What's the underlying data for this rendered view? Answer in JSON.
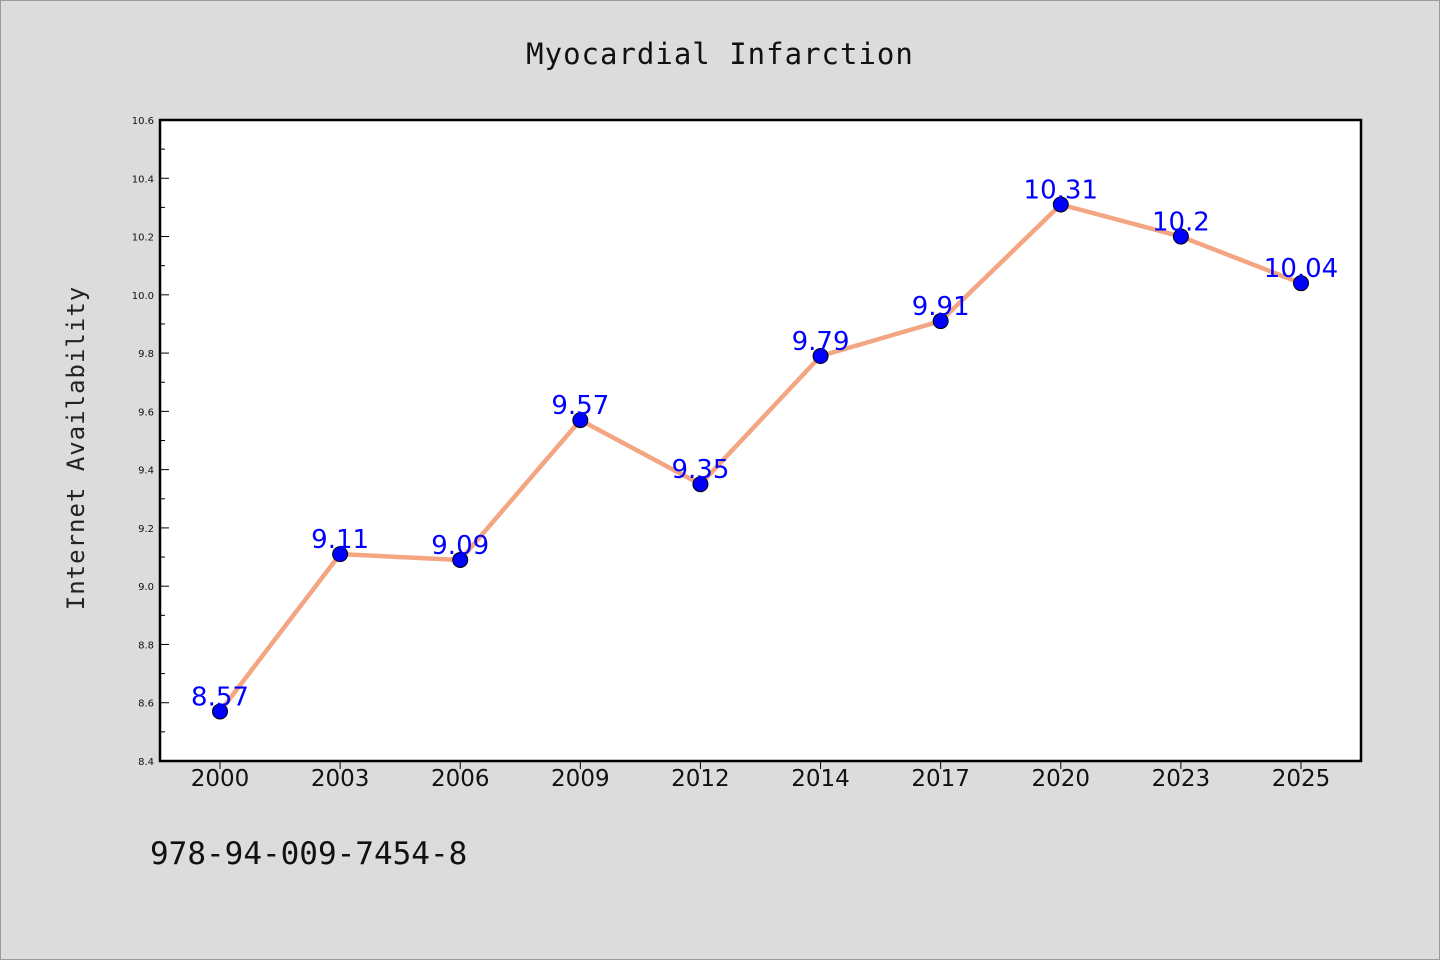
{
  "chart_data": {
    "type": "line",
    "title": "Myocardial Infarction",
    "xlabel": "",
    "ylabel": "Internet Availability",
    "categories": [
      "2000",
      "2003",
      "2006",
      "2009",
      "2012",
      "2014",
      "2017",
      "2020",
      "2023",
      "2025"
    ],
    "series": [
      {
        "values": [
          8.57,
          9.11,
          9.09,
          9.57,
          9.35,
          9.79,
          9.91,
          10.31,
          10.2,
          10.04
        ],
        "data_labels": [
          "8.57",
          "9.11",
          "9.09",
          "9.57",
          "9.35",
          "9.79",
          "9.91",
          "10.31",
          "10.2",
          "10.04"
        ]
      }
    ],
    "ylim": [
      8.4,
      10.6
    ],
    "yticks": [
      "8.4",
      "8.6",
      "8.8",
      "9.0",
      "9.2",
      "9.4",
      "9.6",
      "9.8",
      "10.0",
      "10.2",
      "10.4",
      "10.6"
    ],
    "grid": false,
    "legend": "none",
    "line_color": "#f4a582",
    "marker_color": "#0000ff",
    "label_color": "#0000ff",
    "background_color": "#dcdcdc",
    "plot_background_color": "#ffffff"
  },
  "footer": {
    "code": "978-94-009-7454-8"
  }
}
